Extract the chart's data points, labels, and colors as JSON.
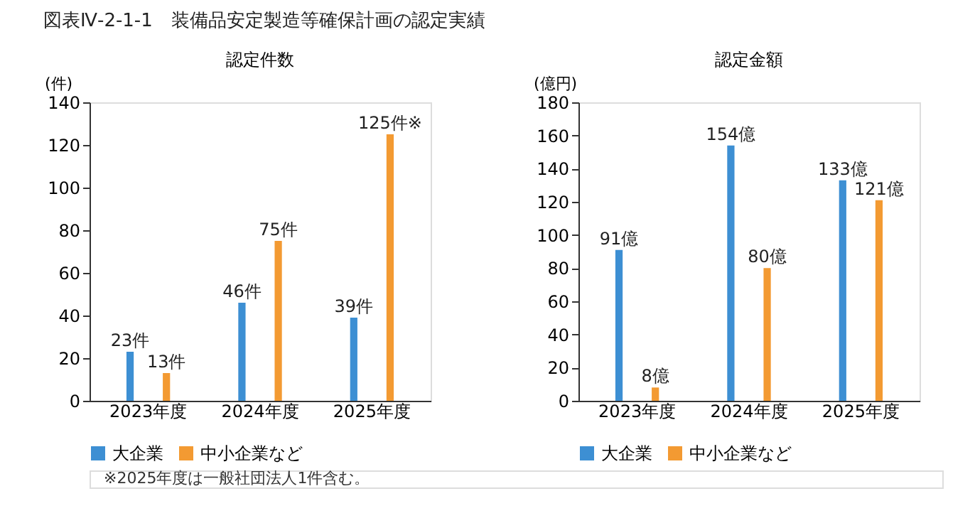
{
  "chart_data": [
    {
      "type": "bar",
      "title": "図表Ⅳ-2-1-1　装備品安定製造等確保計画の認定実績",
      "subtitle": "認定件数",
      "ylabel": "(件)",
      "categories": [
        "2023年度",
        "2024年度",
        "2025年度"
      ],
      "series": [
        {
          "name": "大企業",
          "color": "#3d8fd3",
          "values": [
            23,
            46,
            39
          ],
          "value_labels": [
            "23件",
            "46件",
            "39件"
          ]
        },
        {
          "name": "中小企業など",
          "color": "#f39a32",
          "values": [
            13,
            75,
            125
          ],
          "value_labels": [
            "13件",
            "75件",
            "125件※"
          ]
        }
      ],
      "ylim": [
        0,
        140
      ],
      "yticks": [
        0,
        20,
        40,
        60,
        80,
        100,
        120,
        140
      ],
      "legend": "bottom",
      "annotations": [
        "※2025年度は一般社団法人1件含む。"
      ]
    },
    {
      "type": "bar",
      "subtitle": "認定金額",
      "ylabel": "(億円)",
      "categories": [
        "2023年度",
        "2024年度",
        "2025年度"
      ],
      "series": [
        {
          "name": "大企業",
          "color": "#3d8fd3",
          "values": [
            91,
            154,
            133
          ],
          "value_labels": [
            "91億",
            "154億",
            "133億"
          ]
        },
        {
          "name": "中小企業など",
          "color": "#f39a32",
          "values": [
            8,
            80,
            121
          ],
          "value_labels": [
            "8億",
            "80億",
            "121億"
          ]
        }
      ],
      "ylim": [
        0,
        180
      ],
      "yticks": [
        0,
        20,
        40,
        60,
        80,
        100,
        120,
        140,
        160,
        180
      ],
      "legend": "bottom"
    }
  ]
}
